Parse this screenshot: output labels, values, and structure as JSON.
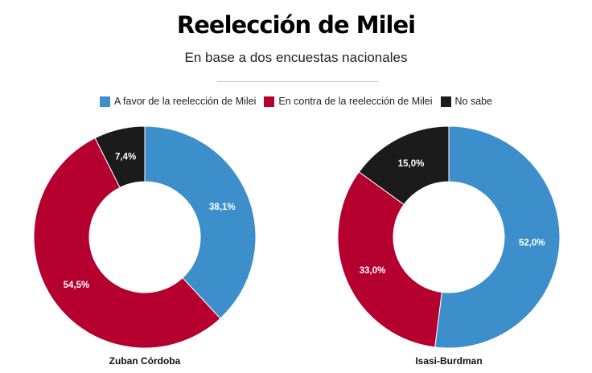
{
  "title": "Reelección de Milei",
  "subtitle": "En base a dos encuestas nacionales",
  "chart_data": [
    {
      "type": "pie",
      "variant": "donut",
      "title": "Zuban Córdoba",
      "categories": [
        "A favor de la reelección de Milei",
        "En contra de la reelección de Milei",
        "No sabe"
      ],
      "values": [
        38.1,
        54.5,
        7.4
      ],
      "labels": [
        "38,1%",
        "54,5%",
        "7,4%"
      ],
      "colors": [
        "#3d8fcc",
        "#b5002f",
        "#1b1b1b"
      ],
      "legend": "top"
    },
    {
      "type": "pie",
      "variant": "donut",
      "title": "Isasi-Burdman",
      "categories": [
        "A favor de la reelección de Milei",
        "En contra de la reelección de Milei",
        "No sabe"
      ],
      "values": [
        52.0,
        33.0,
        15.0
      ],
      "labels": [
        "52,0%",
        "33,0%",
        "15,0%"
      ],
      "colors": [
        "#3d8fcc",
        "#b5002f",
        "#1b1b1b"
      ],
      "legend": "top"
    }
  ],
  "legend": [
    {
      "label": "A favor de la reelección de Milei",
      "color": "#3d8fcc"
    },
    {
      "label": "En contra de la reelección de Milei",
      "color": "#b5002f"
    },
    {
      "label": "No sabe",
      "color": "#1b1b1b"
    }
  ]
}
